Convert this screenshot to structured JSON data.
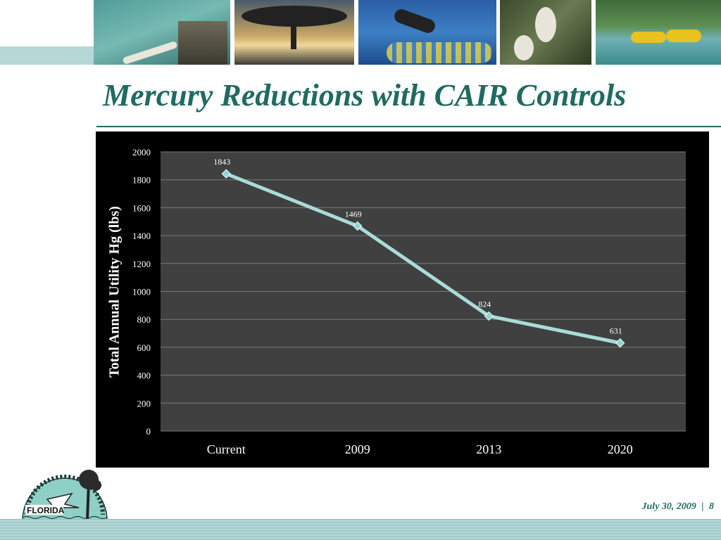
{
  "slide": {
    "title": "Mercury Reductions with CAIR Controls",
    "footer": {
      "date": "July 30, 2009",
      "separator": "|",
      "page": "8"
    },
    "logo_text": "FLORIDA"
  },
  "colors": {
    "title": "#1f6b61",
    "line": "#a9dcd9",
    "plot_bg": "#404040",
    "chart_bg": "#000000",
    "footer_bar": "#9ec9c7"
  },
  "chart_data": {
    "type": "line",
    "title": "",
    "xlabel": "",
    "ylabel": "Total Annual Utility Hg (lbs)",
    "categories": [
      "Current",
      "2009",
      "2013",
      "2020"
    ],
    "series": [
      {
        "values": [
          1843,
          1469,
          824,
          631
        ]
      }
    ],
    "data_labels": [
      "1843",
      "1469",
      "824",
      "631"
    ],
    "y_ticks": [
      "0",
      "200",
      "400",
      "600",
      "800",
      "1000",
      "1200",
      "1400",
      "1600",
      "1800",
      "2000"
    ],
    "ylim": [
      0,
      2000
    ],
    "grid": true,
    "legend": "none"
  }
}
